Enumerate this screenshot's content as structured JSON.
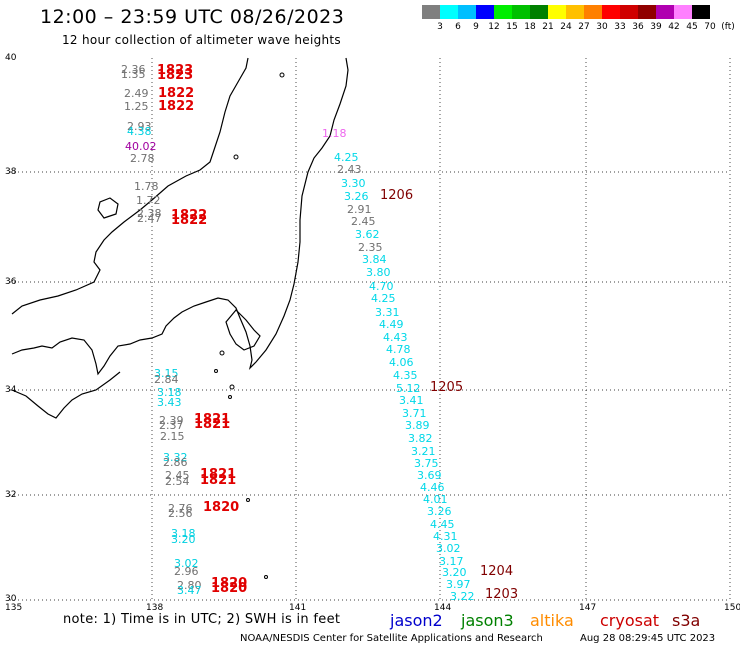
{
  "header": {
    "title": "12:00 – 23:59 UTC 08/26/2023",
    "subtitle": "12 hour collection of altimeter wave heights"
  },
  "scale": {
    "labels": [
      "3",
      "6",
      "9",
      "12",
      "15",
      "18",
      "21",
      "24",
      "27",
      "30",
      "33",
      "36",
      "39",
      "42",
      "45",
      "70",
      "(ft)"
    ],
    "colors": [
      "#7f7f7f",
      "#00ffff",
      "#00bfff",
      "#0000ff",
      "#00ee00",
      "#00c000",
      "#008000",
      "#ffff00",
      "#ffc000",
      "#ff8000",
      "#ff0000",
      "#d00000",
      "#900000",
      "#b000b0",
      "#ff80ff",
      "#000000"
    ]
  },
  "axes": {
    "lon_labels": [
      "135",
      "138",
      "141",
      "144",
      "147",
      "150"
    ],
    "lat_labels": [
      "40",
      "38",
      "36",
      "34",
      "32",
      "30"
    ]
  },
  "tracks": {
    "cryosat": [
      {
        "v": "2.36"
      },
      {
        "v": "1.35"
      },
      {
        "v": "2.49"
      },
      {
        "v": "1.25"
      },
      {
        "v": "2.93"
      },
      {
        "v": "4.38"
      },
      {
        "v": "40.02"
      },
      {
        "v": "2.78"
      },
      {
        "v": "1.78"
      },
      {
        "v": "1.72"
      },
      {
        "v": "2.38"
      },
      {
        "v": "2.47"
      },
      {
        "v": "3.15"
      },
      {
        "v": "2.84"
      },
      {
        "v": "3.18"
      },
      {
        "v": "3.43"
      },
      {
        "v": "2.39"
      },
      {
        "v": "2.37"
      },
      {
        "v": "2.15"
      },
      {
        "v": "3.32"
      },
      {
        "v": "2.86"
      },
      {
        "v": "2.45"
      },
      {
        "v": "2.54"
      },
      {
        "v": "2.76"
      },
      {
        "v": "2.56"
      },
      {
        "v": "3.18"
      },
      {
        "v": "3.20"
      },
      {
        "v": "3.02"
      },
      {
        "v": "2.96"
      },
      {
        "v": "2.80"
      },
      {
        "v": "3.47"
      }
    ],
    "cryosat_times": [
      "1823",
      "1823",
      "1822",
      "1822",
      "1822",
      "1822",
      "1821",
      "1821",
      "1821",
      "1821",
      "1820",
      "1820",
      "1820"
    ],
    "s3a": [
      {
        "v": "1.18"
      },
      {
        "v": "4.25"
      },
      {
        "v": "2.43"
      },
      {
        "v": "3.30"
      },
      {
        "v": "3.26"
      },
      {
        "v": "2.91"
      },
      {
        "v": "2.45"
      },
      {
        "v": "3.62"
      },
      {
        "v": "2.35"
      },
      {
        "v": "3.84"
      },
      {
        "v": "3.80"
      },
      {
        "v": "4.70"
      },
      {
        "v": "4.25"
      },
      {
        "v": "3.31"
      },
      {
        "v": "4.49"
      },
      {
        "v": "4.43"
      },
      {
        "v": "4.78"
      },
      {
        "v": "4.06"
      },
      {
        "v": "4.35"
      },
      {
        "v": "5.12"
      },
      {
        "v": "3.41"
      },
      {
        "v": "3.71"
      },
      {
        "v": "3.89"
      },
      {
        "v": "3.82"
      },
      {
        "v": "3.21"
      },
      {
        "v": "3.75"
      },
      {
        "v": "3.69"
      },
      {
        "v": "4.46"
      },
      {
        "v": "4.01"
      },
      {
        "v": "3.26"
      },
      {
        "v": "4.45"
      },
      {
        "v": "4.31"
      },
      {
        "v": "3.02"
      },
      {
        "v": "3.17"
      },
      {
        "v": "3.20"
      },
      {
        "v": "3.97"
      },
      {
        "v": "3.22"
      }
    ],
    "s3a_times": [
      "1206",
      "1205",
      "1204",
      "1203"
    ]
  },
  "footer": {
    "note": "note: 1) Time is in UTC; 2) SWH is in feet",
    "credit": "NOAA/NESDIS Center for Satellite Applications and Research",
    "timestamp": "Aug 28 08:29:45 UTC 2023",
    "legend": [
      {
        "name": "jason2",
        "color": "#0000cc"
      },
      {
        "name": "jason3",
        "color": "#008000"
      },
      {
        "name": "altika",
        "color": "#ff8c00"
      },
      {
        "name": "cryosat",
        "color": "#cc0000"
      },
      {
        "name": "s3a",
        "color": "#800000"
      }
    ]
  }
}
